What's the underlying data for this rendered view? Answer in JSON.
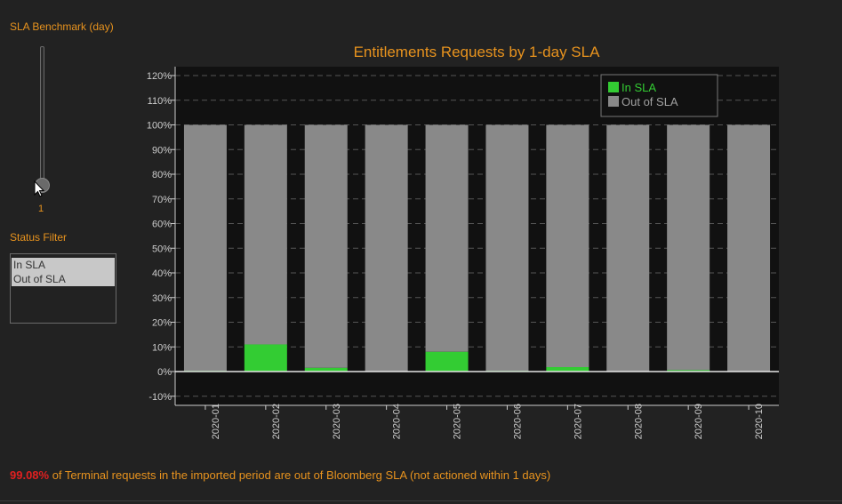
{
  "controls": {
    "sla_benchmark_label": "SLA Benchmark (day)",
    "sla_benchmark_value": "1",
    "status_filter_label": "Status Filter",
    "status_options": [
      "In SLA",
      "Out of SLA"
    ]
  },
  "footer": {
    "percent": "99.08%",
    "text": " of Terminal requests in the imported period are out of Bloomberg SLA (not actioned within 1 days)"
  },
  "colors": {
    "accent": "#e8931e",
    "in_sla": "#33cc33",
    "out_sla": "#898989",
    "plot_bg": "#111111",
    "alert": "#e02020"
  },
  "chart_data": {
    "type": "bar",
    "stacked": true,
    "title": "Entitlements Requests by 1-day SLA",
    "categories": [
      "2020-01",
      "2020-02",
      "2020-03",
      "2020-04",
      "2020-05",
      "2020-06",
      "2020-07",
      "2020-08",
      "2020-09",
      "2020-10"
    ],
    "series": [
      {
        "name": "In SLA",
        "values": [
          0.3,
          11,
          1.5,
          0,
          8,
          0.3,
          1.8,
          0,
          0.6,
          0
        ]
      },
      {
        "name": "Out of SLA",
        "values": [
          99.7,
          89,
          98.5,
          100,
          92,
          99.7,
          98.2,
          100,
          99.4,
          100
        ]
      }
    ],
    "yticks": [
      "-10%",
      "0%",
      "10%",
      "20%",
      "30%",
      "40%",
      "50%",
      "60%",
      "70%",
      "80%",
      "90%",
      "100%",
      "110%",
      "120%"
    ],
    "ylim": [
      -14,
      124
    ],
    "grid": true,
    "legend": "top-right"
  }
}
